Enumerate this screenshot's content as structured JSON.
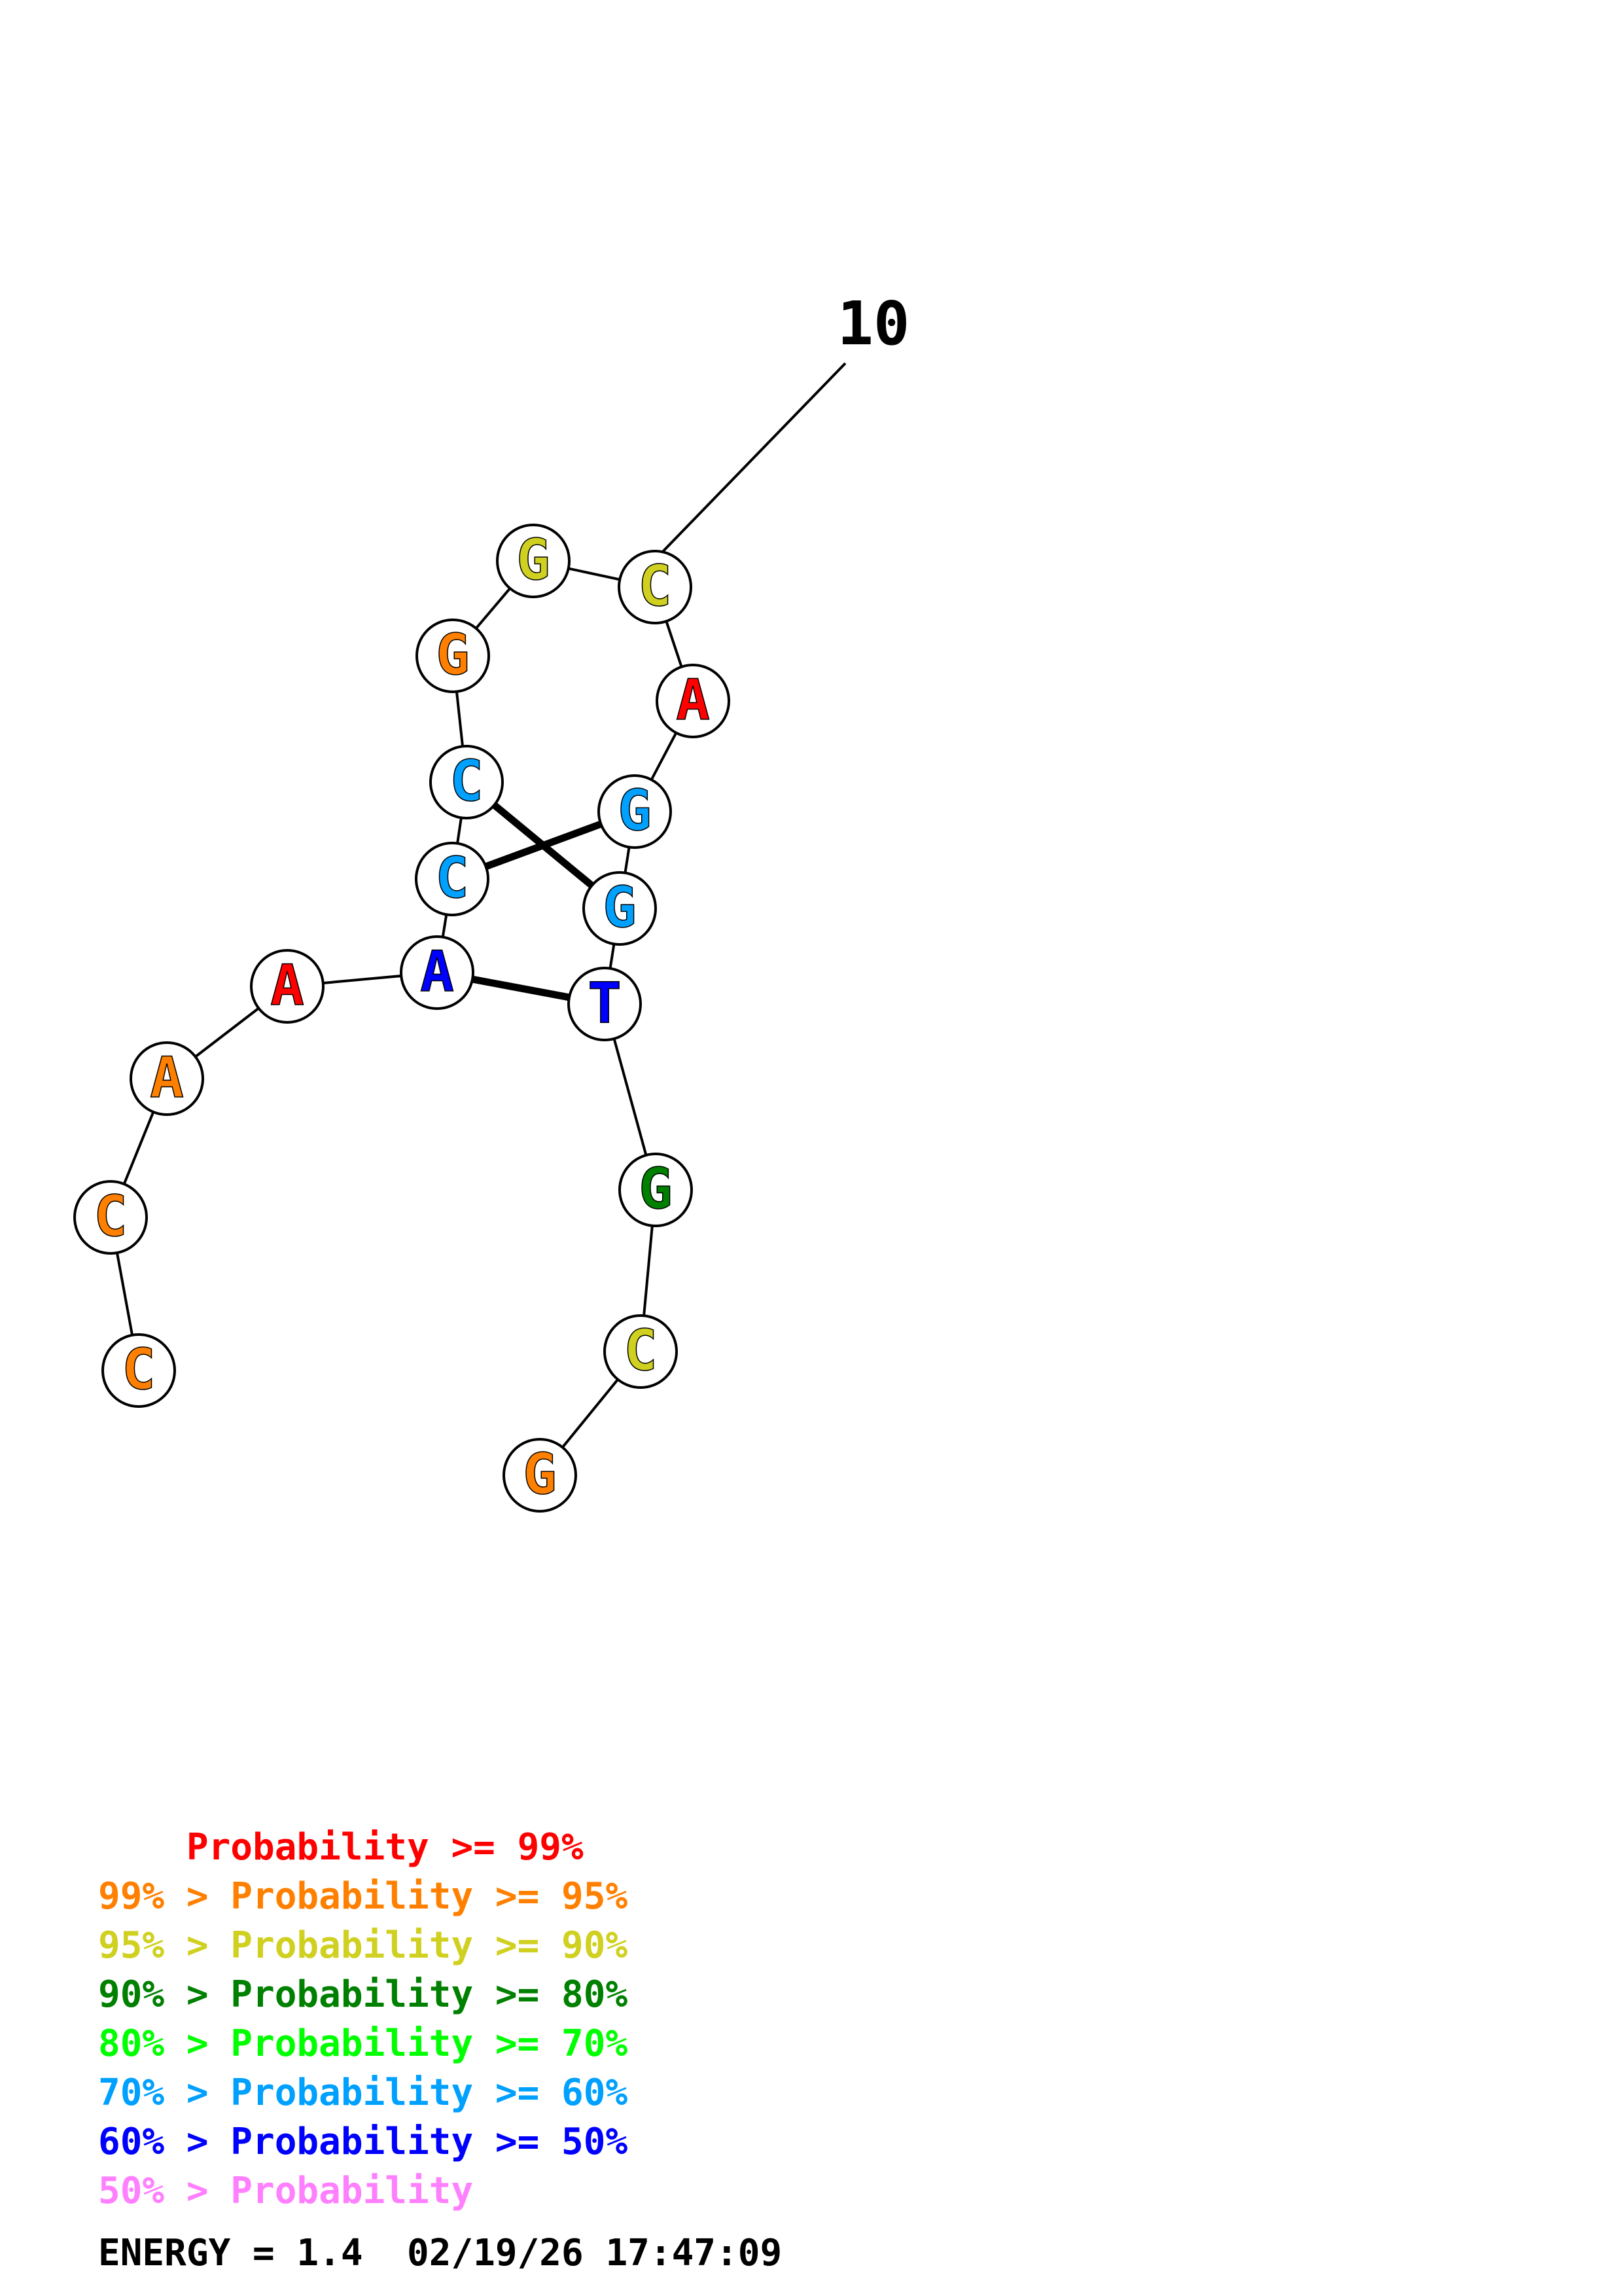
{
  "structure": {
    "label": "10",
    "nucleotides": [
      {
        "base": "C",
        "color": "#ff8000"
      },
      {
        "base": "C",
        "color": "#ff8000"
      },
      {
        "base": "A",
        "color": "#ff8000"
      },
      {
        "base": "A",
        "color": "#ff0000"
      },
      {
        "base": "A",
        "color": "#0000ff"
      },
      {
        "base": "C",
        "color": "#00a0ff"
      },
      {
        "base": "C",
        "color": "#00a0ff"
      },
      {
        "base": "G",
        "color": "#ff8000"
      },
      {
        "base": "G",
        "color": "#d0d020"
      },
      {
        "base": "C",
        "color": "#d0d020"
      },
      {
        "base": "A",
        "color": "#ff0000"
      },
      {
        "base": "G",
        "color": "#00a0ff"
      },
      {
        "base": "G",
        "color": "#00a0ff"
      },
      {
        "base": "T",
        "color": "#0000ff"
      },
      {
        "base": "G",
        "color": "#008000"
      },
      {
        "base": "C",
        "color": "#d0d020"
      },
      {
        "base": "G",
        "color": "#ff8000"
      }
    ],
    "pairs": [
      [
        5,
        11
      ],
      [
        6,
        12
      ],
      [
        4,
        13
      ]
    ]
  },
  "legend": [
    {
      "text": "    Probability >= 99%",
      "color": "#ff0000"
    },
    {
      "text": "99% > Probability >= 95%",
      "color": "#ff8000"
    },
    {
      "text": "95% > Probability >= 90%",
      "color": "#d0d020"
    },
    {
      "text": "90% > Probability >= 80%",
      "color": "#008000"
    },
    {
      "text": "80% > Probability >= 70%",
      "color": "#00ff00"
    },
    {
      "text": "70% > Probability >= 60%",
      "color": "#00a0ff"
    },
    {
      "text": "60% > Probability >= 50%",
      "color": "#0000ff"
    },
    {
      "text": "50% > Probability",
      "color": "#ff80ff"
    }
  ],
  "footer": "ENERGY = 1.4  02/19/26 17:47:09"
}
